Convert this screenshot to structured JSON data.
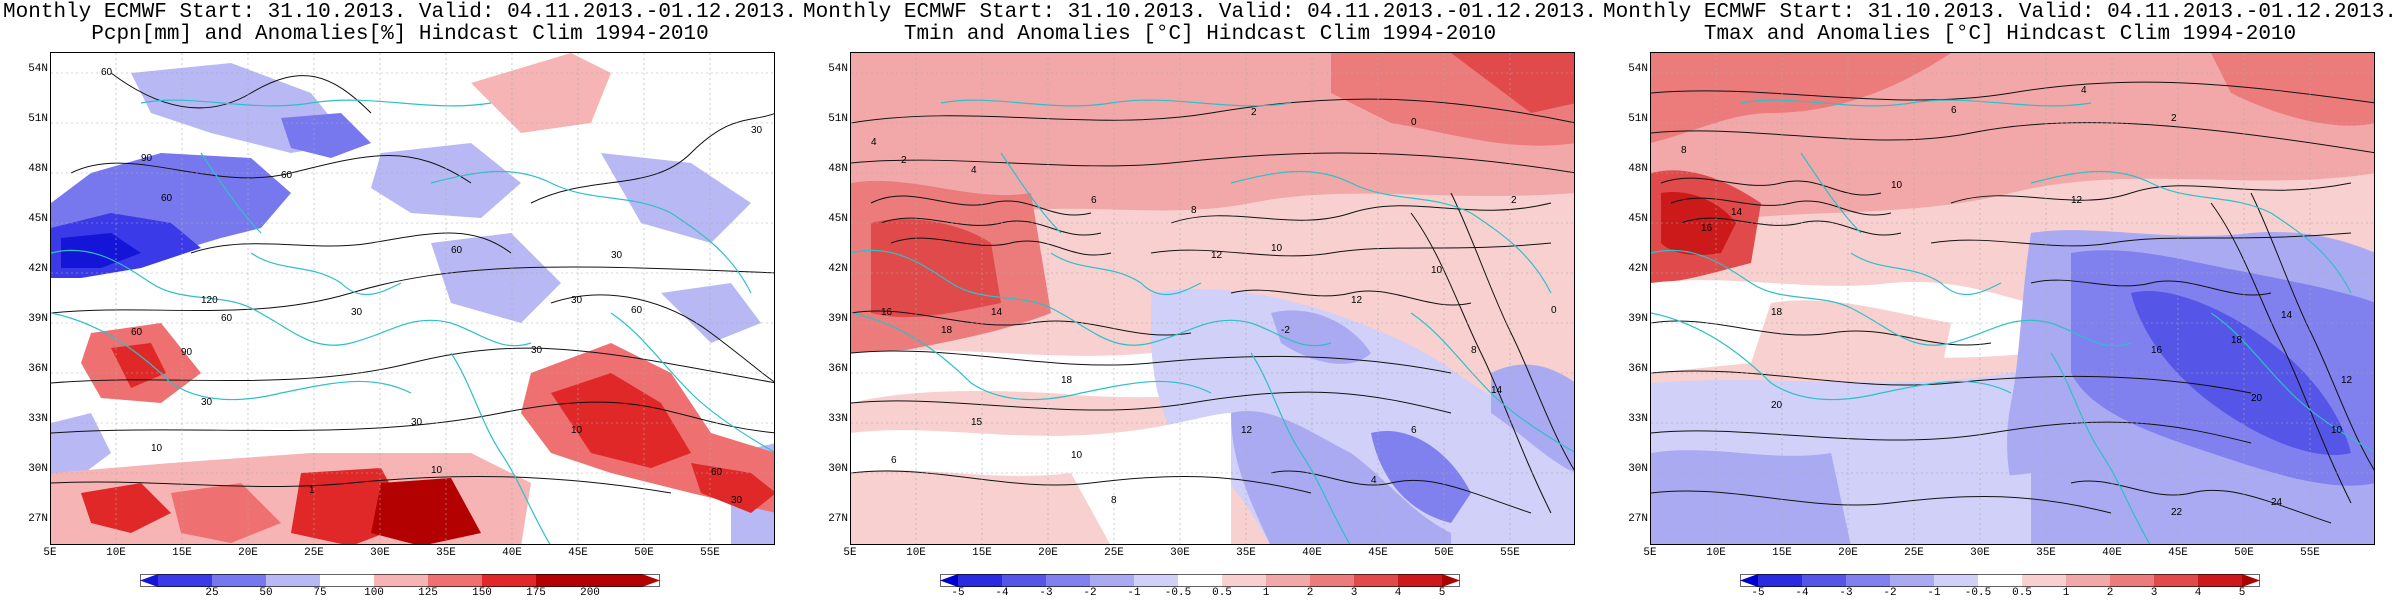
{
  "panels": [
    {
      "title_line1": "Monthly ECMWF Start: 31.10.2013. Valid: 04.11.2013.-01.12.2013.",
      "title_line2": "Pcpn[mm] and Anomalies[%] Hindcast Clim 1994-2010",
      "colorbar_labels": [
        "25",
        "50",
        "75",
        "100",
        "125",
        "150",
        "175",
        "200"
      ],
      "colorbar_colors": [
        "#1515d8",
        "#3a3ae8",
        "#7777ee",
        "#b8b8f4",
        "#ffffff",
        "#f6b4b4",
        "#ee7070",
        "#e02828",
        "#b30000"
      ],
      "contour_labels": [
        "60",
        "90",
        "60",
        "60",
        "30",
        "30",
        "60",
        "30",
        "30",
        "60",
        "90",
        "120",
        "60",
        "30",
        "10",
        "30",
        "10",
        "1",
        "60",
        "30",
        "10",
        "60",
        "30"
      ]
    },
    {
      "title_line1": "Monthly ECMWF Start: 31.10.2013. Valid: 04.11.2013.-01.12.2013.",
      "title_line2": "Tmin and Anomalies [°C] Hindcast Clim 1994-2010",
      "colorbar_labels": [
        "-5",
        "-4",
        "-3",
        "-2",
        "-1",
        "-0.5",
        "0.5",
        "1",
        "2",
        "3",
        "4",
        "5"
      ],
      "colorbar_colors": [
        "#0000cc",
        "#2a2ae0",
        "#5555e8",
        "#8080ee",
        "#aaaaf2",
        "#d0d0f8",
        "#ffffff",
        "#f8d0d0",
        "#f2a8a8",
        "#ec7c7c",
        "#e04a4a",
        "#cc1a1a",
        "#aa0000"
      ],
      "contour_labels": [
        "0",
        "2",
        "4",
        "2",
        "4",
        "6",
        "8",
        "10",
        "12",
        "14",
        "16",
        "18",
        "10",
        "12",
        "14",
        "8",
        "6",
        "4",
        "2",
        "0",
        "-2",
        "15",
        "18",
        "10",
        "12",
        "8",
        "6"
      ]
    },
    {
      "title_line1": "Monthly ECMWF Start: 31.10.2013. Valid: 04.11.2013.-01.12.2013.",
      "title_line2": "Tmax and Anomalies [°C] Hindcast Clim 1994-2010",
      "colorbar_labels": [
        "-5",
        "-4",
        "-3",
        "-2",
        "-1",
        "-0.5",
        "0.5",
        "1",
        "2",
        "3",
        "4",
        "5"
      ],
      "colorbar_colors": [
        "#0000cc",
        "#2a2ae0",
        "#5555e8",
        "#8080ee",
        "#aaaaf2",
        "#d0d0f8",
        "#ffffff",
        "#f8d0d0",
        "#f2a8a8",
        "#ec7c7c",
        "#e04a4a",
        "#cc1a1a",
        "#aa0000"
      ],
      "contour_labels": [
        "4",
        "6",
        "2",
        "8",
        "10",
        "12",
        "14",
        "16",
        "18",
        "20",
        "22",
        "24",
        "10",
        "12",
        "14",
        "16",
        "18",
        "20"
      ]
    }
  ],
  "y_axis_labels": [
    "54N",
    "51N",
    "48N",
    "45N",
    "42N",
    "39N",
    "36N",
    "33N",
    "30N",
    "27N"
  ],
  "x_axis_labels": [
    "5E",
    "10E",
    "15E",
    "20E",
    "25E",
    "30E",
    "35E",
    "40E",
    "45E",
    "50E",
    "55E"
  ]
}
